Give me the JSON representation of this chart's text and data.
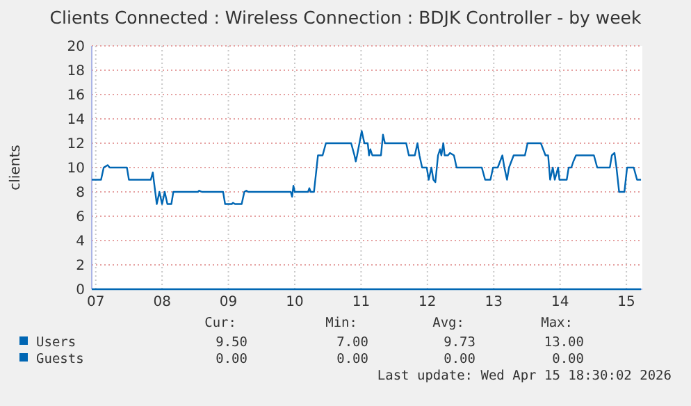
{
  "chart_data": {
    "type": "line",
    "title": "Clients Connected : Wireless Connection : BDJK Controller - by week",
    "ylabel": "clients",
    "xlim": [
      6.94,
      15.24
    ],
    "xticks": [
      {
        "value": 7,
        "label": "07"
      },
      {
        "value": 8,
        "label": "08"
      },
      {
        "value": 9,
        "label": "09"
      },
      {
        "value": 10,
        "label": "10"
      },
      {
        "value": 11,
        "label": "11"
      },
      {
        "value": 12,
        "label": "12"
      },
      {
        "value": 13,
        "label": "13"
      },
      {
        "value": 14,
        "label": "14"
      },
      {
        "value": 15,
        "label": "15"
      }
    ],
    "ylim": [
      0,
      20
    ],
    "yticks": [
      0,
      2,
      4,
      6,
      8,
      10,
      12,
      14,
      16,
      18,
      20
    ],
    "grid": true,
    "legend": "bottom",
    "series": [
      {
        "name": "Users",
        "color": "#0066b3",
        "x": [
          6.94,
          7.08,
          7.12,
          7.18,
          7.21,
          7.47,
          7.5,
          7.83,
          7.86,
          7.92,
          7.96,
          8.0,
          8.04,
          8.08,
          8.14,
          8.17,
          8.54,
          8.56,
          8.6,
          8.92,
          8.95,
          9.05,
          9.07,
          9.1,
          9.2,
          9.24,
          9.27,
          9.3,
          9.94,
          9.96,
          9.98,
          10.0,
          10.2,
          10.22,
          10.24,
          10.29,
          10.35,
          10.42,
          10.47,
          10.85,
          10.9,
          10.92,
          10.94,
          11.01,
          11.05,
          11.1,
          11.12,
          11.14,
          11.17,
          11.3,
          11.33,
          11.36,
          11.68,
          11.72,
          11.81,
          11.85,
          11.88,
          11.92,
          11.99,
          12.02,
          12.06,
          12.09,
          12.12,
          12.16,
          12.19,
          12.21,
          12.24,
          12.26,
          12.31,
          12.34,
          12.4,
          12.44,
          12.82,
          12.87,
          12.95,
          12.99,
          13.06,
          13.13,
          13.16,
          13.2,
          13.23,
          13.3,
          13.47,
          13.51,
          13.71,
          13.78,
          13.82,
          13.85,
          13.89,
          13.92,
          13.97,
          13.99,
          14.1,
          14.13,
          14.17,
          14.2,
          14.24,
          14.51,
          14.56,
          14.75,
          14.78,
          14.82,
          14.85,
          14.89,
          14.97,
          15.01,
          15.11,
          15.16,
          15.22
        ],
        "values": [
          9,
          9,
          10,
          10.2,
          10,
          10,
          9,
          9,
          9.6,
          7,
          8,
          7,
          8,
          7,
          7,
          8,
          8,
          8.1,
          8,
          8,
          7,
          7,
          7.1,
          7,
          7,
          8,
          8.1,
          8,
          8,
          7.6,
          8.5,
          8,
          8,
          8.3,
          8,
          8,
          11,
          11,
          12,
          12,
          11,
          10.5,
          11,
          13,
          12,
          12,
          11,
          11.5,
          11,
          11,
          12.7,
          12,
          12,
          11,
          11,
          12,
          11,
          10,
          10,
          9,
          10,
          9,
          8.8,
          11,
          11.5,
          11,
          12,
          11,
          11,
          11.2,
          11,
          10,
          10,
          9,
          9,
          10,
          10,
          11,
          10,
          9,
          10,
          11,
          11,
          12,
          12,
          11,
          11,
          9,
          10,
          9,
          10,
          9,
          9,
          10,
          10,
          10.5,
          11,
          11,
          10,
          10,
          11,
          11.2,
          10,
          8,
          8,
          10,
          10,
          9,
          9
        ]
      },
      {
        "name": "Guests",
        "color": "#0066b3",
        "x": [
          6.94,
          15.22
        ],
        "values": [
          0,
          0
        ]
      }
    ],
    "annotations": [
      "Cur:",
      "Min:",
      "Avg:",
      "Max:",
      "9.50",
      "7.00",
      "9.73",
      "13.00",
      "0.00",
      "0.00",
      "0.00",
      "0.00",
      "Last update: Wed Apr 15 18:30:02 2026"
    ]
  }
}
